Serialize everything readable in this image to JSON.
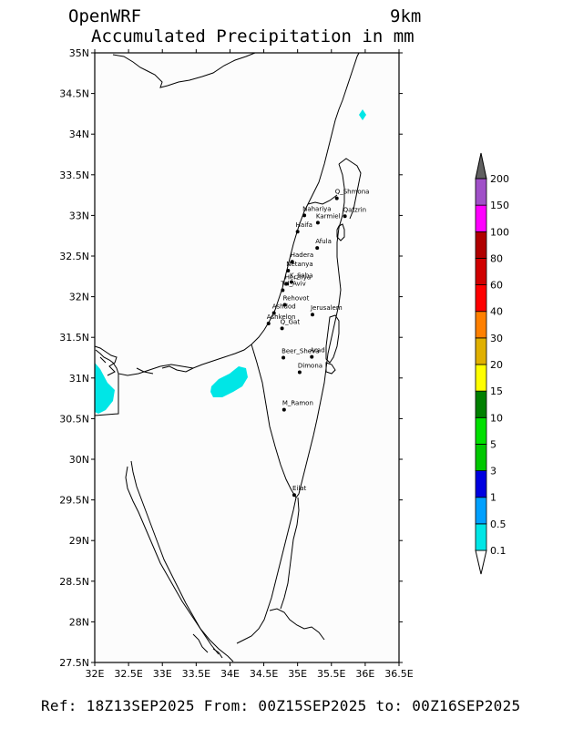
{
  "header": {
    "model": "OpenWRF",
    "resolution": "9km",
    "title": "Accumulated Precipitation in mm"
  },
  "footer": {
    "text": "Ref: 18Z13SEP2025  From: 00Z15SEP2025 to: 00Z16SEP2025"
  },
  "map": {
    "lat_range": [
      27.5,
      35
    ],
    "lon_range": [
      32,
      36.5
    ],
    "lat_ticks": [
      {
        "value": 27.5,
        "label": "27.5N"
      },
      {
        "value": 28,
        "label": "28N"
      },
      {
        "value": 28.5,
        "label": "28.5N"
      },
      {
        "value": 29,
        "label": "29N"
      },
      {
        "value": 29.5,
        "label": "29.5N"
      },
      {
        "value": 30,
        "label": "30N"
      },
      {
        "value": 30.5,
        "label": "30.5N"
      },
      {
        "value": 31,
        "label": "31N"
      },
      {
        "value": 31.5,
        "label": "31.5N"
      },
      {
        "value": 32,
        "label": "32N"
      },
      {
        "value": 32.5,
        "label": "32.5N"
      },
      {
        "value": 33,
        "label": "33N"
      },
      {
        "value": 33.5,
        "label": "33.5N"
      },
      {
        "value": 34,
        "label": "34N"
      },
      {
        "value": 34.5,
        "label": "34.5N"
      },
      {
        "value": 35,
        "label": "35N"
      }
    ],
    "lon_ticks": [
      {
        "value": 32,
        "label": "32E"
      },
      {
        "value": 32.5,
        "label": "32.5E"
      },
      {
        "value": 33,
        "label": "33E"
      },
      {
        "value": 33.5,
        "label": "33.5E"
      },
      {
        "value": 34,
        "label": "34E"
      },
      {
        "value": 34.5,
        "label": "34.5E"
      },
      {
        "value": 35,
        "label": "35E"
      },
      {
        "value": 35.5,
        "label": "35.5E"
      },
      {
        "value": 36,
        "label": "36E"
      },
      {
        "value": 36.5,
        "label": "36.5E"
      }
    ],
    "cities": [
      {
        "name": "Q_Shmona",
        "lat": 33.21,
        "lon": 35.58
      },
      {
        "name": "Nahariya",
        "lat": 33.0,
        "lon": 35.1
      },
      {
        "name": "Qatzrin",
        "lat": 32.99,
        "lon": 35.7
      },
      {
        "name": "Karmiel",
        "lat": 32.91,
        "lon": 35.3
      },
      {
        "name": "Haifa",
        "lat": 32.8,
        "lon": 35.0
      },
      {
        "name": "Afula",
        "lat": 32.6,
        "lon": 35.29
      },
      {
        "name": "Hadera",
        "lat": 32.43,
        "lon": 34.92
      },
      {
        "name": "Netanya",
        "lat": 32.32,
        "lon": 34.86
      },
      {
        "name": "Herzliya",
        "lat": 32.16,
        "lon": 34.84
      },
      {
        "name": "K_Saba",
        "lat": 32.18,
        "lon": 34.91
      },
      {
        "name": "Tel_Aviv",
        "lat": 32.08,
        "lon": 34.78
      },
      {
        "name": "Rehovot",
        "lat": 31.9,
        "lon": 34.81
      },
      {
        "name": "Ashdod",
        "lat": 31.8,
        "lon": 34.65
      },
      {
        "name": "Jerusalem",
        "lat": 31.78,
        "lon": 35.22
      },
      {
        "name": "Ashkelon",
        "lat": 31.67,
        "lon": 34.57
      },
      {
        "name": "Q_Gat",
        "lat": 31.61,
        "lon": 34.77
      },
      {
        "name": "Beer_Sheva",
        "lat": 31.25,
        "lon": 34.79
      },
      {
        "name": "Arad",
        "lat": 31.26,
        "lon": 35.21
      },
      {
        "name": "Dimona",
        "lat": 31.07,
        "lon": 35.03
      },
      {
        "name": "M_Ramon",
        "lat": 30.61,
        "lon": 34.8
      },
      {
        "name": "Eilat",
        "lat": 29.56,
        "lon": 34.95
      }
    ],
    "precip_fill_color": "#00e6e6",
    "line_color": "#000000"
  },
  "legend": {
    "levels": [
      "0.1",
      "0.5",
      "1",
      "3",
      "5",
      "10",
      "15",
      "20",
      "30",
      "40",
      "60",
      "80",
      "100",
      "150",
      "200"
    ],
    "colors": [
      "#00e6e6",
      "#00a0ff",
      "#0000e0",
      "#00c800",
      "#00e000",
      "#008000",
      "#ffff00",
      "#e0b000",
      "#ff8000",
      "#ff0000",
      "#d00000",
      "#b00000",
      "#ff00ff",
      "#a050c8",
      "#606060"
    ]
  }
}
